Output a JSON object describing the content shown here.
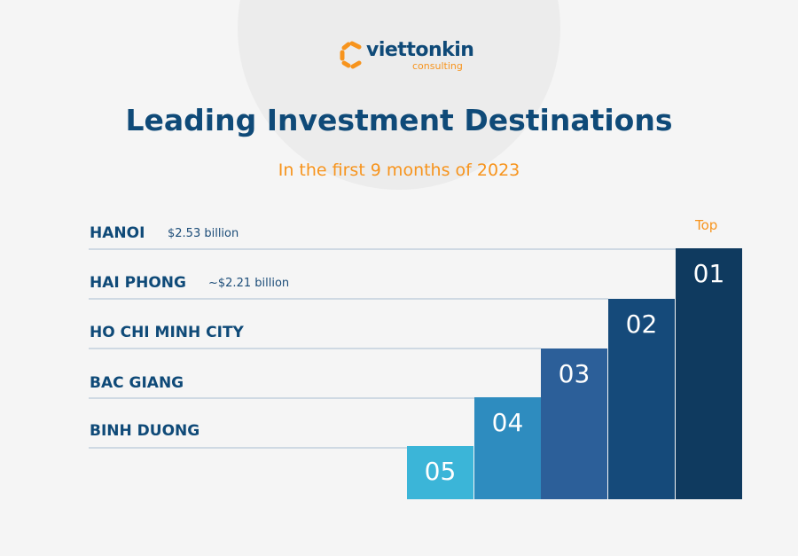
{
  "logo": {
    "name": "viettonkin",
    "sub": "consulting"
  },
  "title": "Leading Investment Destinations",
  "subtitle": "In the first 9 months of 2023",
  "top_label": "Top",
  "rankings": [
    {
      "rank": "01",
      "name": "HANOI",
      "value": "$2.53 billion",
      "color": "#0f3a5f"
    },
    {
      "rank": "02",
      "name": "HAI PHONG",
      "value": "~$2.21 billion",
      "color": "#154a7a"
    },
    {
      "rank": "03",
      "name": "HO CHI MINH CITY",
      "value": "",
      "color": "#2c5f99"
    },
    {
      "rank": "04",
      "name": "BAC GIANG",
      "value": "",
      "color": "#2e8cbf"
    },
    {
      "rank": "05",
      "name": "BINH DUONG",
      "value": "",
      "color": "#3bb5d8"
    }
  ]
}
